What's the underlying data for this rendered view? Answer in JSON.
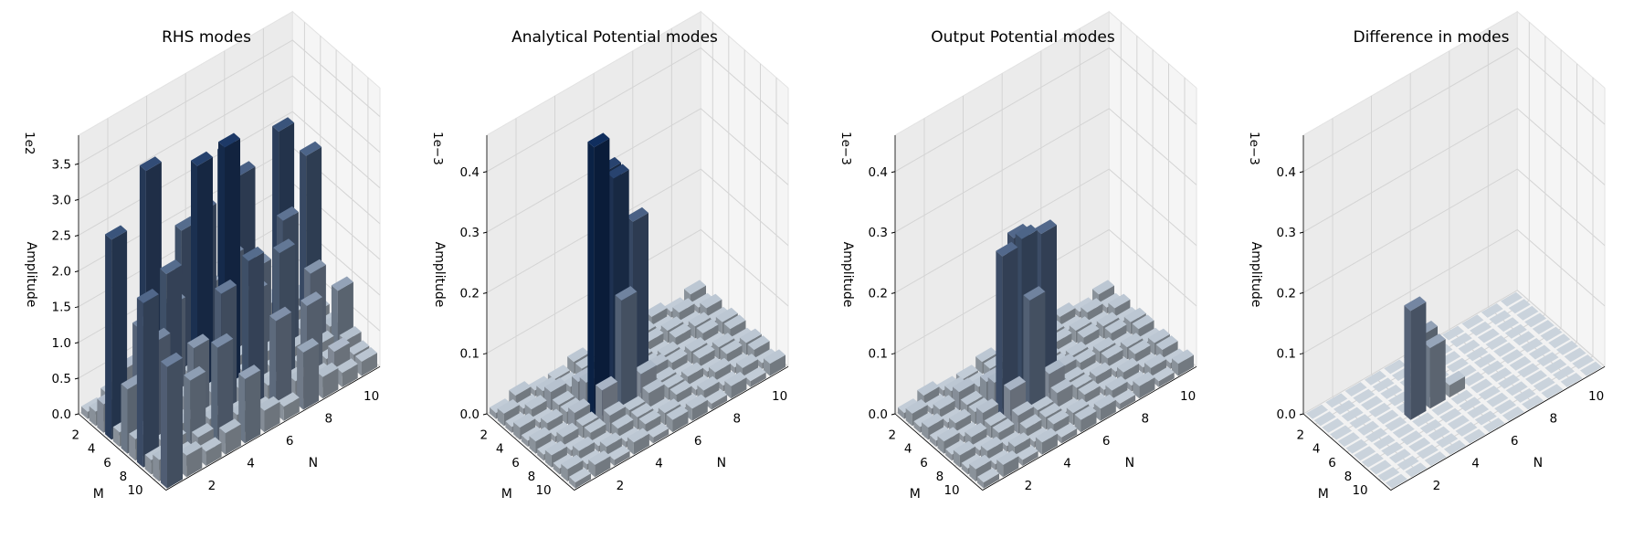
{
  "chart_data": [
    {
      "type": "bar3d",
      "title": "RHS modes",
      "xlabel": "M",
      "ylabel": "N",
      "zlabel": "Amplitude",
      "scale_label": "1e2",
      "x_ticks": [
        "2",
        "4",
        "6",
        "8",
        "10"
      ],
      "y_ticks": [
        "2",
        "4",
        "6",
        "8",
        "10"
      ],
      "z_ticks": [
        "0.0",
        "0.5",
        "1.0",
        "1.5",
        "2.0",
        "2.5",
        "3.0",
        "3.5"
      ],
      "zlim": [
        0,
        3.9
      ],
      "grid": true,
      "note": "11x11 grid of bar heights (M rows 0-10, N columns 0-10), values in units of 1e2, estimated",
      "values": [
        [
          0.1,
          0.2,
          0.4,
          3.0,
          0.2,
          0.3,
          0.9,
          2.6,
          0.3,
          0.2,
          0.1
        ],
        [
          0.2,
          0.3,
          0.2,
          0.3,
          0.2,
          0.2,
          0.3,
          0.2,
          0.4,
          0.3,
          0.2
        ],
        [
          0.4,
          0.2,
          1.1,
          0.3,
          2.2,
          2.3,
          0.3,
          2.5,
          0.2,
          2.8,
          0.3
        ],
        [
          2.8,
          0.3,
          0.2,
          1.4,
          0.3,
          0.2,
          1.6,
          0.3,
          0.2,
          0.3,
          2.4
        ],
        [
          0.2,
          1.5,
          0.3,
          0.2,
          3.3,
          0.2,
          0.3,
          1.4,
          0.3,
          0.2,
          0.3
        ],
        [
          0.9,
          0.2,
          2.2,
          0.3,
          0.2,
          3.5,
          0.2,
          0.3,
          2.0,
          0.3,
          0.2
        ],
        [
          0.3,
          1.5,
          0.2,
          1.1,
          0.3,
          0.2,
          1.4,
          0.2,
          0.3,
          1.2,
          0.3
        ],
        [
          2.3,
          0.2,
          0.3,
          0.2,
          1.8,
          0.3,
          0.2,
          1.9,
          0.2,
          0.3,
          0.9
        ],
        [
          0.2,
          0.3,
          1.0,
          0.3,
          0.2,
          2.2,
          0.3,
          0.2,
          1.1,
          0.2,
          0.3
        ],
        [
          0.3,
          0.2,
          0.3,
          1.4,
          0.3,
          0.2,
          1.3,
          0.3,
          0.2,
          0.4,
          0.2
        ],
        [
          1.7,
          0.3,
          0.2,
          0.3,
          0.9,
          0.3,
          0.2,
          0.8,
          0.3,
          0.2,
          0.2
        ]
      ]
    },
    {
      "type": "bar3d",
      "title": "Analytical Potential modes",
      "xlabel": "M",
      "ylabel": "N",
      "zlabel": "Amplitude",
      "scale_label": "1e−3",
      "x_ticks": [
        "2",
        "4",
        "6",
        "8",
        "10"
      ],
      "y_ticks": [
        "2",
        "4",
        "6",
        "8",
        "10"
      ],
      "z_ticks": [
        "0.0",
        "0.1",
        "0.2",
        "0.3",
        "0.4"
      ],
      "zlim": [
        0,
        0.46
      ],
      "grid": true,
      "note": "11x11 grid of bar heights (M rows 0-10, N columns 0-10), values in units of 1e-3, estimated",
      "values": [
        [
          0.01,
          0.02,
          0.01,
          0.01,
          0.02,
          0.01,
          0.02,
          0.01,
          0.02,
          0.01,
          0.02
        ],
        [
          0.02,
          0.01,
          0.02,
          0.01,
          0.02,
          0.02,
          0.01,
          0.02,
          0.01,
          0.02,
          0.01
        ],
        [
          0.01,
          0.02,
          0.03,
          0.02,
          0.01,
          0.02,
          0.01,
          0.02,
          0.02,
          0.01,
          0.02
        ],
        [
          0.02,
          0.01,
          0.02,
          0.04,
          0.03,
          0.02,
          0.02,
          0.01,
          0.02,
          0.02,
          0.01
        ],
        [
          0.01,
          0.02,
          0.02,
          0.05,
          0.38,
          0.07,
          0.02,
          0.02,
          0.01,
          0.02,
          0.02
        ],
        [
          0.02,
          0.01,
          0.03,
          0.45,
          0.38,
          0.29,
          0.03,
          0.02,
          0.02,
          0.01,
          0.02
        ],
        [
          0.01,
          0.02,
          0.02,
          0.06,
          0.19,
          0.05,
          0.02,
          0.01,
          0.02,
          0.02,
          0.01
        ],
        [
          0.02,
          0.01,
          0.02,
          0.03,
          0.02,
          0.03,
          0.02,
          0.02,
          0.01,
          0.02,
          0.02
        ],
        [
          0.01,
          0.02,
          0.01,
          0.02,
          0.02,
          0.01,
          0.02,
          0.01,
          0.02,
          0.01,
          0.02
        ],
        [
          0.02,
          0.01,
          0.02,
          0.01,
          0.02,
          0.02,
          0.01,
          0.02,
          0.01,
          0.02,
          0.01
        ],
        [
          0.01,
          0.02,
          0.01,
          0.02,
          0.01,
          0.02,
          0.02,
          0.01,
          0.02,
          0.01,
          0.02
        ]
      ]
    },
    {
      "type": "bar3d",
      "title": "Output Potential modes",
      "xlabel": "M",
      "ylabel": "N",
      "zlabel": "Amplitude",
      "scale_label": "1e−3",
      "x_ticks": [
        "2",
        "4",
        "6",
        "8",
        "10"
      ],
      "y_ticks": [
        "2",
        "4",
        "6",
        "8",
        "10"
      ],
      "z_ticks": [
        "0.0",
        "0.1",
        "0.2",
        "0.3",
        "0.4"
      ],
      "zlim": [
        0,
        0.46
      ],
      "grid": true,
      "note": "11x11 grid of bar heights (M rows 0-10, N columns 0-10), values in units of 1e-3, estimated",
      "values": [
        [
          0.01,
          0.02,
          0.01,
          0.01,
          0.02,
          0.01,
          0.02,
          0.01,
          0.02,
          0.01,
          0.02
        ],
        [
          0.02,
          0.01,
          0.02,
          0.01,
          0.02,
          0.02,
          0.01,
          0.02,
          0.01,
          0.02,
          0.01
        ],
        [
          0.01,
          0.02,
          0.03,
          0.02,
          0.01,
          0.02,
          0.01,
          0.02,
          0.02,
          0.01,
          0.02
        ],
        [
          0.02,
          0.01,
          0.02,
          0.04,
          0.03,
          0.02,
          0.02,
          0.01,
          0.02,
          0.02,
          0.01
        ],
        [
          0.01,
          0.02,
          0.02,
          0.05,
          0.27,
          0.07,
          0.02,
          0.02,
          0.01,
          0.02,
          0.02
        ],
        [
          0.02,
          0.01,
          0.03,
          0.27,
          0.28,
          0.27,
          0.03,
          0.02,
          0.02,
          0.01,
          0.02
        ],
        [
          0.01,
          0.02,
          0.02,
          0.06,
          0.19,
          0.05,
          0.02,
          0.01,
          0.02,
          0.02,
          0.01
        ],
        [
          0.02,
          0.01,
          0.02,
          0.03,
          0.02,
          0.03,
          0.02,
          0.02,
          0.01,
          0.02,
          0.02
        ],
        [
          0.01,
          0.02,
          0.01,
          0.02,
          0.02,
          0.01,
          0.02,
          0.01,
          0.02,
          0.01,
          0.02
        ],
        [
          0.02,
          0.01,
          0.02,
          0.01,
          0.02,
          0.02,
          0.01,
          0.02,
          0.01,
          0.02,
          0.01
        ],
        [
          0.01,
          0.02,
          0.01,
          0.02,
          0.01,
          0.02,
          0.02,
          0.01,
          0.02,
          0.01,
          0.02
        ]
      ]
    },
    {
      "type": "bar3d",
      "title": "Difference in modes",
      "xlabel": "M",
      "ylabel": "N",
      "zlabel": "Amplitude",
      "scale_label": "1e−3",
      "x_ticks": [
        "2",
        "4",
        "6",
        "8",
        "10"
      ],
      "y_ticks": [
        "2",
        "4",
        "6",
        "8",
        "10"
      ],
      "z_ticks": [
        "0.0",
        "0.1",
        "0.2",
        "0.3",
        "0.4"
      ],
      "zlim": [
        0,
        0.46
      ],
      "grid": true,
      "note": "11x11 grid of bar heights (M rows 0-10, N columns 0-10), values in units of 1e-3, estimated",
      "values": [
        [
          0.0,
          0.0,
          0.0,
          0.0,
          0.0,
          0.0,
          0.0,
          0.0,
          0.0,
          0.0,
          0.0
        ],
        [
          0.0,
          0.0,
          0.0,
          0.0,
          0.0,
          0.0,
          0.0,
          0.0,
          0.0,
          0.0,
          0.0
        ],
        [
          0.0,
          0.0,
          0.0,
          0.0,
          0.0,
          0.0,
          0.0,
          0.0,
          0.0,
          0.0,
          0.0
        ],
        [
          0.0,
          0.0,
          0.0,
          0.0,
          0.0,
          0.0,
          0.0,
          0.0,
          0.0,
          0.0,
          0.0
        ],
        [
          0.0,
          0.0,
          0.0,
          0.0,
          0.11,
          0.0,
          0.0,
          0.0,
          0.0,
          0.0,
          0.0
        ],
        [
          0.0,
          0.0,
          0.0,
          0.18,
          0.1,
          0.02,
          0.0,
          0.0,
          0.0,
          0.0,
          0.0
        ],
        [
          0.0,
          0.0,
          0.0,
          0.0,
          0.0,
          0.0,
          0.0,
          0.0,
          0.0,
          0.0,
          0.0
        ],
        [
          0.0,
          0.0,
          0.0,
          0.0,
          0.0,
          0.0,
          0.0,
          0.0,
          0.0,
          0.0,
          0.0
        ],
        [
          0.0,
          0.0,
          0.0,
          0.0,
          0.0,
          0.0,
          0.0,
          0.0,
          0.0,
          0.0,
          0.0
        ],
        [
          0.0,
          0.0,
          0.0,
          0.0,
          0.0,
          0.0,
          0.0,
          0.0,
          0.0,
          0.0,
          0.0
        ],
        [
          0.0,
          0.0,
          0.0,
          0.0,
          0.0,
          0.0,
          0.0,
          0.0,
          0.0,
          0.0,
          0.0
        ]
      ]
    }
  ],
  "colors": {
    "bar_low": "#b4bcc4",
    "bar_high": "#0b2652",
    "pane": "#f2f2f2",
    "grid": "#d4d4d4",
    "text": "#000000"
  }
}
